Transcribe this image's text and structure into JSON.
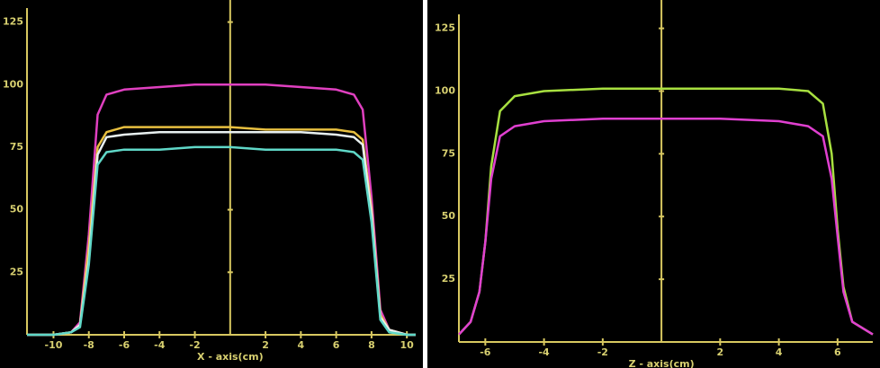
{
  "chart_data": [
    {
      "type": "line",
      "x_label": "X - axis(cm)",
      "x": [
        -11.5,
        -10,
        -9,
        -8.5,
        -8,
        -7.5,
        -7,
        -6,
        -4,
        -2,
        0,
        2,
        4,
        6,
        7,
        7.5,
        8,
        8.5,
        9,
        10,
        10.5
      ],
      "series": [
        {
          "color": "#e040c0",
          "values": [
            0,
            0,
            1,
            5,
            40,
            88,
            96,
            98,
            99,
            100,
            100,
            100,
            99,
            98,
            96,
            90,
            55,
            10,
            2,
            0,
            0
          ]
        },
        {
          "color": "#e8c040",
          "values": [
            0,
            0,
            1,
            4,
            35,
            75,
            81,
            83,
            83,
            83,
            83,
            82,
            82,
            82,
            81,
            78,
            50,
            8,
            2,
            0,
            0
          ]
        },
        {
          "color": "#e8f0f0",
          "values": [
            0,
            0,
            1,
            4,
            30,
            72,
            79,
            80,
            81,
            81,
            81,
            81,
            81,
            80,
            79,
            76,
            48,
            7,
            2,
            0,
            0
          ]
        },
        {
          "color": "#60d8c8",
          "values": [
            0,
            0,
            1,
            3,
            28,
            68,
            73,
            74,
            74,
            75,
            75,
            74,
            74,
            74,
            73,
            70,
            45,
            6,
            1,
            0,
            0
          ]
        }
      ],
      "xlim": [
        -11.5,
        10.5
      ],
      "xticks": [
        -10,
        -8,
        -6,
        -4,
        -2,
        2,
        4,
        6,
        8,
        10
      ],
      "ylim": [
        0,
        127
      ],
      "yticks": [
        25,
        50,
        75,
        100,
        125
      ]
    },
    {
      "type": "line",
      "x_label": "Z - axis(cm)",
      "x": [
        -6.9,
        -6.5,
        -6.2,
        -6,
        -5.8,
        -5.5,
        -5,
        -4,
        -2,
        0,
        2,
        4,
        5,
        5.5,
        5.8,
        6,
        6.2,
        6.5,
        7.2
      ],
      "series": [
        {
          "color": "#a8e040",
          "values": [
            3,
            8,
            20,
            40,
            70,
            92,
            98,
            100,
            101,
            101,
            101,
            101,
            100,
            95,
            75,
            45,
            22,
            8,
            3
          ]
        },
        {
          "color": "#e040d0",
          "values": [
            3,
            8,
            20,
            40,
            65,
            82,
            86,
            88,
            89,
            89,
            89,
            88,
            86,
            82,
            65,
            42,
            20,
            8,
            3
          ]
        }
      ],
      "xlim": [
        -6.9,
        7.2
      ],
      "xticks": [
        -6,
        -4,
        -2,
        2,
        4,
        6
      ],
      "ylim": [
        0,
        127
      ],
      "yticks": [
        25,
        50,
        75,
        100,
        125
      ]
    }
  ]
}
